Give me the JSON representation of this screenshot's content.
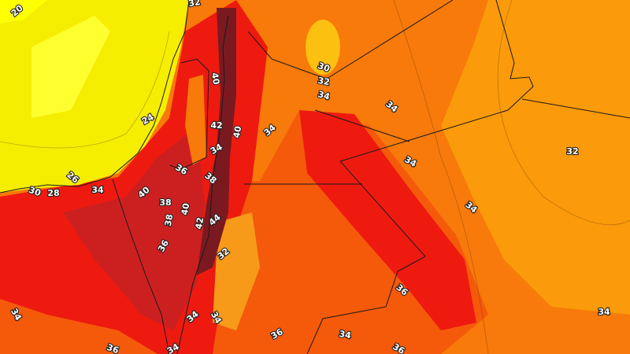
{
  "map": {
    "type": "temperature contour map",
    "units": "°C",
    "colors": {
      "sea_yellow": "#f5ee00",
      "cool_yellow": "#ffff00",
      "orange_light": "#fb9a0a",
      "orange": "#f77a0a",
      "orange_red": "#f55a0a",
      "red": "#ee1a10",
      "dark_red": "#cc2020",
      "darkest_red": "#7a1a20",
      "border_line": "#1a1a1a"
    },
    "contour_labels": [
      "20",
      "32",
      "40",
      "42",
      "40",
      "34",
      "24",
      "34",
      "36",
      "38",
      "30",
      "28",
      "26",
      "34",
      "40",
      "38",
      "38",
      "40",
      "42",
      "44",
      "36",
      "32",
      "34",
      "34",
      "34",
      "36",
      "36",
      "34",
      "30",
      "32",
      "34",
      "34",
      "34",
      "32",
      "34",
      "36",
      "34",
      "34",
      "36"
    ]
  }
}
